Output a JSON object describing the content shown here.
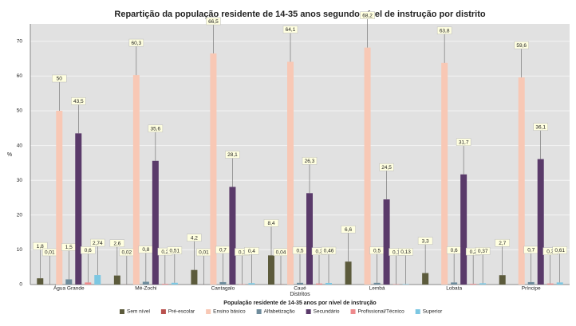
{
  "chart_data": {
    "type": "bar",
    "title": "Repartição da população residente de 14-35 anos segundo nível de instrução por distrito",
    "x_label": "Distritos",
    "y_label": "%",
    "legend_title": "População residente de 14-35 anos por nível de instrução",
    "categories": [
      "Água Grande",
      "Mé-Zochi",
      "Cantagalo",
      "Caué",
      "Lembá",
      "Lobata",
      "Príncipe"
    ],
    "series": [
      {
        "name": "Sem nível",
        "color": "#5c5b3c",
        "values": [
          1.8,
          2.6,
          4.2,
          8.4,
          6.6,
          3.3,
          2.7
        ],
        "value_labels": [
          "1,8",
          "2,6",
          "4,2",
          "8,4",
          "6,6",
          "3,3",
          "2,7"
        ]
      },
      {
        "name": "Pré-escolar",
        "color": "#b9514e",
        "values": [
          0.01,
          0.02,
          0.01,
          0.04,
          null,
          null,
          null
        ],
        "value_labels": [
          "0,01",
          "0,02",
          "0,01",
          "0,04",
          null,
          null,
          null
        ]
      },
      {
        "name": "Ensino básico",
        "color": "#f8c8b5",
        "values": [
          50,
          60.3,
          66.5,
          64.1,
          68.2,
          63.8,
          59.6
        ],
        "value_labels": [
          "50",
          "60,3",
          "66,5",
          "64,1",
          "68,2",
          "63,8",
          "59,6"
        ]
      },
      {
        "name": "Alfabetização",
        "color": "#6f8c9c",
        "values": [
          1.5,
          0.8,
          0.7,
          0.5,
          0.5,
          0.6,
          0.7
        ],
        "value_labels": [
          "1,5",
          "0,8",
          "0,7",
          "0,5",
          "0,5",
          "0,6",
          "0,7"
        ]
      },
      {
        "name": "Secundário",
        "color": "#5a3a6a",
        "values": [
          43.5,
          35.6,
          28.1,
          26.3,
          24.5,
          31.7,
          36.1
        ],
        "value_labels": [
          "43,5",
          "35,6",
          "28,1",
          "26,3",
          "24,5",
          "31,7",
          "36,1"
        ]
      },
      {
        "name": "Profissional/Técnico",
        "color": "#ee8a8c",
        "values": [
          0.6,
          0.2,
          0.1,
          0.3,
          0.1,
          0.2,
          0.3
        ],
        "value_labels": [
          "0,6",
          "0,2",
          "0,1",
          "0,3",
          "0,1",
          "0,2",
          "0,3"
        ]
      },
      {
        "name": "Superior",
        "color": "#7cc7e2",
        "values": [
          2.74,
          0.51,
          0.4,
          0.46,
          0.13,
          0.37,
          0.61
        ],
        "value_labels": [
          "2,74",
          "0,51",
          "0,4",
          "0,46",
          "0,13",
          "0,37",
          "0,61"
        ]
      }
    ],
    "ylim": [
      0,
      75
    ],
    "yticks": [
      0,
      10,
      20,
      30,
      40,
      50,
      60,
      70
    ],
    "grid": true
  }
}
